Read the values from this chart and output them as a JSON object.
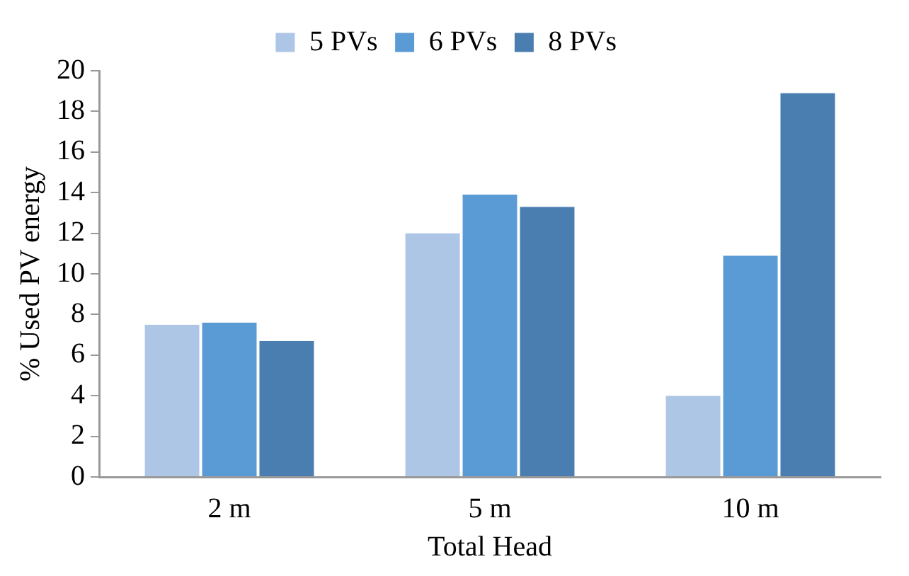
{
  "chart_data": {
    "type": "bar",
    "xlabel": "Total Head",
    "ylabel": "% Used PV energy",
    "categories": [
      "2 m",
      "5 m",
      "10 m"
    ],
    "series": [
      {
        "name": "5 PVs",
        "color": "#adc6e5",
        "values": [
          7.5,
          12.0,
          4.0
        ]
      },
      {
        "name": "6 PVs",
        "color": "#5b9bd5",
        "values": [
          7.6,
          13.9,
          10.9
        ]
      },
      {
        "name": "8 PVs",
        "color": "#4a7eb0",
        "values": [
          6.7,
          13.3,
          18.9
        ]
      }
    ],
    "ylim": [
      0,
      20
    ],
    "yticks": [
      0,
      2,
      4,
      6,
      8,
      10,
      12,
      14,
      16,
      18,
      20
    ],
    "grid": false,
    "legend": "top"
  }
}
